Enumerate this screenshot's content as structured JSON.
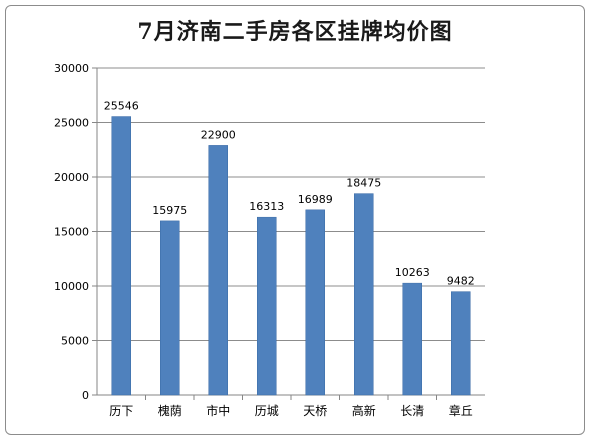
{
  "chart_data": {
    "type": "bar",
    "title": "7月济南二手房各区挂牌均价图",
    "categories": [
      "历下",
      "槐荫",
      "市中",
      "历城",
      "天桥",
      "高新",
      "长清",
      "章丘"
    ],
    "values": [
      25546,
      15975,
      22900,
      16313,
      16989,
      18475,
      10263,
      9482
    ],
    "ylim": [
      0,
      30000
    ],
    "yticks": [
      0,
      5000,
      10000,
      15000,
      20000,
      25000,
      30000
    ],
    "grid": true,
    "legend": "none",
    "colors": {
      "bar": "#4f81bd",
      "bar_edge": "#3a6aa5",
      "grid": "#8c8c8c",
      "axis": "#868686",
      "text": "#000000"
    }
  }
}
